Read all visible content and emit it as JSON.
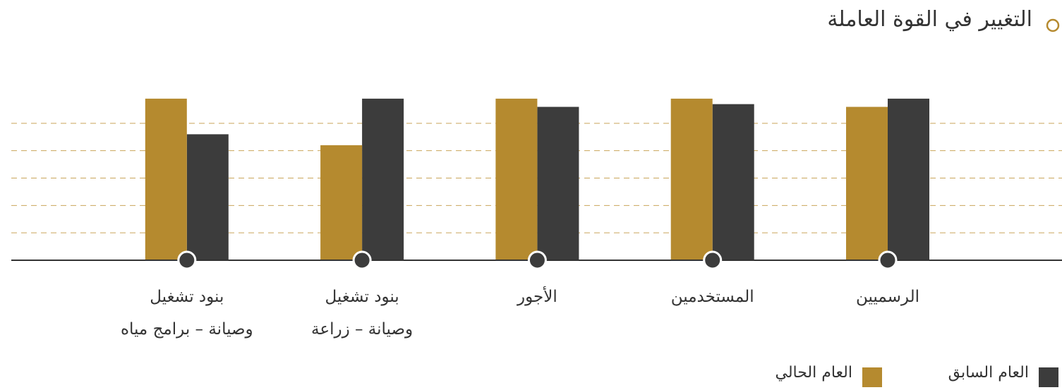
{
  "chart_data": {
    "type": "bar",
    "title": "التغيير في القوة العاملة",
    "categories": [
      "الرسميين",
      "المستخدمين",
      "الأجور",
      "بنود تشغيل\nوصيانة – زراعة",
      "بنود تشغيل\nوصيانة – برامج مياه"
    ],
    "series": [
      {
        "name": "العام السابق",
        "color": "#3c3c3c",
        "values": [
          5.9,
          5.7,
          5.6,
          5.9,
          4.6
        ]
      },
      {
        "name": "العام الحالي",
        "color": "#b58a2f",
        "values": [
          5.6,
          5.9,
          5.9,
          4.2,
          5.9
        ]
      }
    ],
    "ylim": [
      0,
      6
    ],
    "yticks": [
      1,
      2,
      3,
      4,
      5
    ],
    "grid": true
  }
}
